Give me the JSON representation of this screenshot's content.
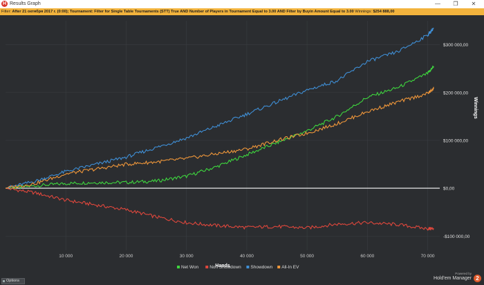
{
  "window": {
    "title": "Results Graph",
    "minimize_glyph": "—",
    "maximize_glyph": "❐",
    "close_glyph": "✕",
    "app_icon": "holdem-manager-icon"
  },
  "filter": {
    "prefix": "Filter:",
    "text": "After 21 октября 2017 г. (0:00); Tournament: Filter for Single Table Tournaments (STT) True AND Number of Players in Tournament Equal to 3.00 AND Filter by Buyin Amount Equal to 3.00",
    "winnings_label": "Winnings:",
    "winnings_value": "$254 888,00"
  },
  "bottom": {
    "options_label": "Options",
    "powered_by": "Powered by",
    "brand": "Hold'em Manager",
    "brand_logo": "2"
  },
  "colors": {
    "net_won": "#3ed63e",
    "non_showdown": "#e0473c",
    "showdown": "#3f8fd6",
    "all_in_ev": "#f0973a",
    "background": "#2b2d30",
    "grid": "#3a3d41"
  },
  "chart_data": {
    "type": "line",
    "xlabel": "Hands",
    "ylabel": "Winnings",
    "xlim": [
      0,
      72000
    ],
    "ylim": [
      -130000,
      350000
    ],
    "x_ticks": [
      10000,
      20000,
      30000,
      40000,
      50000,
      60000,
      70000
    ],
    "x_tick_labels": [
      "10 000",
      "20 000",
      "30 000",
      "40 000",
      "50 000",
      "60 000",
      "70 000"
    ],
    "y_ticks": [
      300000,
      200000,
      100000,
      0,
      -100000
    ],
    "y_tick_labels": [
      "$300 000,00",
      "$200 000,00",
      "$100 000,00",
      "$0,00",
      "-$100 000,00"
    ],
    "grid": true,
    "legend_position": "bottom-center",
    "x": [
      0,
      5000,
      10000,
      15000,
      20000,
      25000,
      30000,
      35000,
      40000,
      45000,
      50000,
      55000,
      60000,
      65000,
      70000,
      71000
    ],
    "series": [
      {
        "name": "Net Won",
        "color": "#3ed63e",
        "values": [
          0,
          5000,
          10000,
          12000,
          12000,
          15000,
          25000,
          45000,
          70000,
          95000,
          120000,
          150000,
          190000,
          210000,
          240000,
          254888
        ]
      },
      {
        "name": "Non Showdown",
        "color": "#e0473c",
        "values": [
          0,
          -10000,
          -25000,
          -35000,
          -45000,
          -60000,
          -72000,
          -78000,
          -82000,
          -80000,
          -83000,
          -75000,
          -72000,
          -76000,
          -85000,
          -84000
        ]
      },
      {
        "name": "Showdown",
        "color": "#3f8fd6",
        "values": [
          0,
          15000,
          35000,
          50000,
          65000,
          85000,
          105000,
          130000,
          155000,
          180000,
          205000,
          225000,
          265000,
          285000,
          320000,
          335000
        ]
      },
      {
        "name": "All-In EV",
        "color": "#f0973a",
        "values": [
          0,
          10000,
          30000,
          40000,
          50000,
          55000,
          62000,
          72000,
          82000,
          100000,
          115000,
          135000,
          160000,
          180000,
          198000,
          208000
        ]
      }
    ]
  }
}
